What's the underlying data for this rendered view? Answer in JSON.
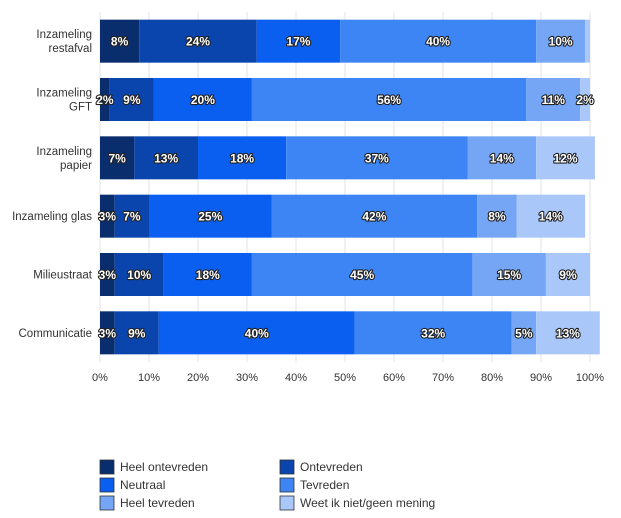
{
  "chart_data": {
    "type": "bar",
    "orientation": "horizontal",
    "stacked": true,
    "categories": [
      "Inzameling restafval",
      "Inzameling GFT",
      "Inzameling papier",
      "Inzameling glas",
      "Milieustraat",
      "Communicatie"
    ],
    "series": [
      {
        "name": "Heel ontevreden",
        "color": "#0a2d6e",
        "values": [
          8,
          2,
          7,
          3,
          3,
          3
        ],
        "labels": [
          "8%",
          "2%",
          "7%",
          "3%",
          "3%",
          "3%"
        ]
      },
      {
        "name": "Ontevreden",
        "color": "#0a44ad",
        "values": [
          24,
          9,
          13,
          7,
          10,
          9
        ],
        "labels": [
          "24%",
          "9%",
          "13%",
          "7%",
          "10%",
          "9%"
        ]
      },
      {
        "name": "Neutraal",
        "color": "#0a5ff0",
        "values": [
          17,
          20,
          18,
          25,
          18,
          40
        ],
        "labels": [
          "17%",
          "20%",
          "18%",
          "25%",
          "18%",
          "40%"
        ]
      },
      {
        "name": "Tevreden",
        "color": "#3d84f5",
        "values": [
          40,
          56,
          37,
          42,
          45,
          32
        ],
        "labels": [
          "40%",
          "56%",
          "37%",
          "42%",
          "45%",
          "32%"
        ]
      },
      {
        "name": "Heel tevreden",
        "color": "#74a6f5",
        "values": [
          10,
          11,
          14,
          8,
          15,
          5
        ],
        "labels": [
          "10%",
          "11%",
          "14%",
          "8%",
          "15%",
          "5%"
        ]
      },
      {
        "name": "Weet ik niet/geen mening",
        "color": "#a9c7f9",
        "values": [
          1,
          2,
          12,
          14,
          9,
          13
        ],
        "labels": [
          "",
          "2%",
          "12%",
          "14%",
          "9%",
          "13%"
        ]
      }
    ],
    "xlim": [
      0,
      100
    ],
    "xticks": [
      "0%",
      "10%",
      "20%",
      "30%",
      "40%",
      "50%",
      "60%",
      "70%",
      "80%",
      "90%",
      "100%"
    ],
    "grid": true,
    "legend_position": "bottom"
  }
}
